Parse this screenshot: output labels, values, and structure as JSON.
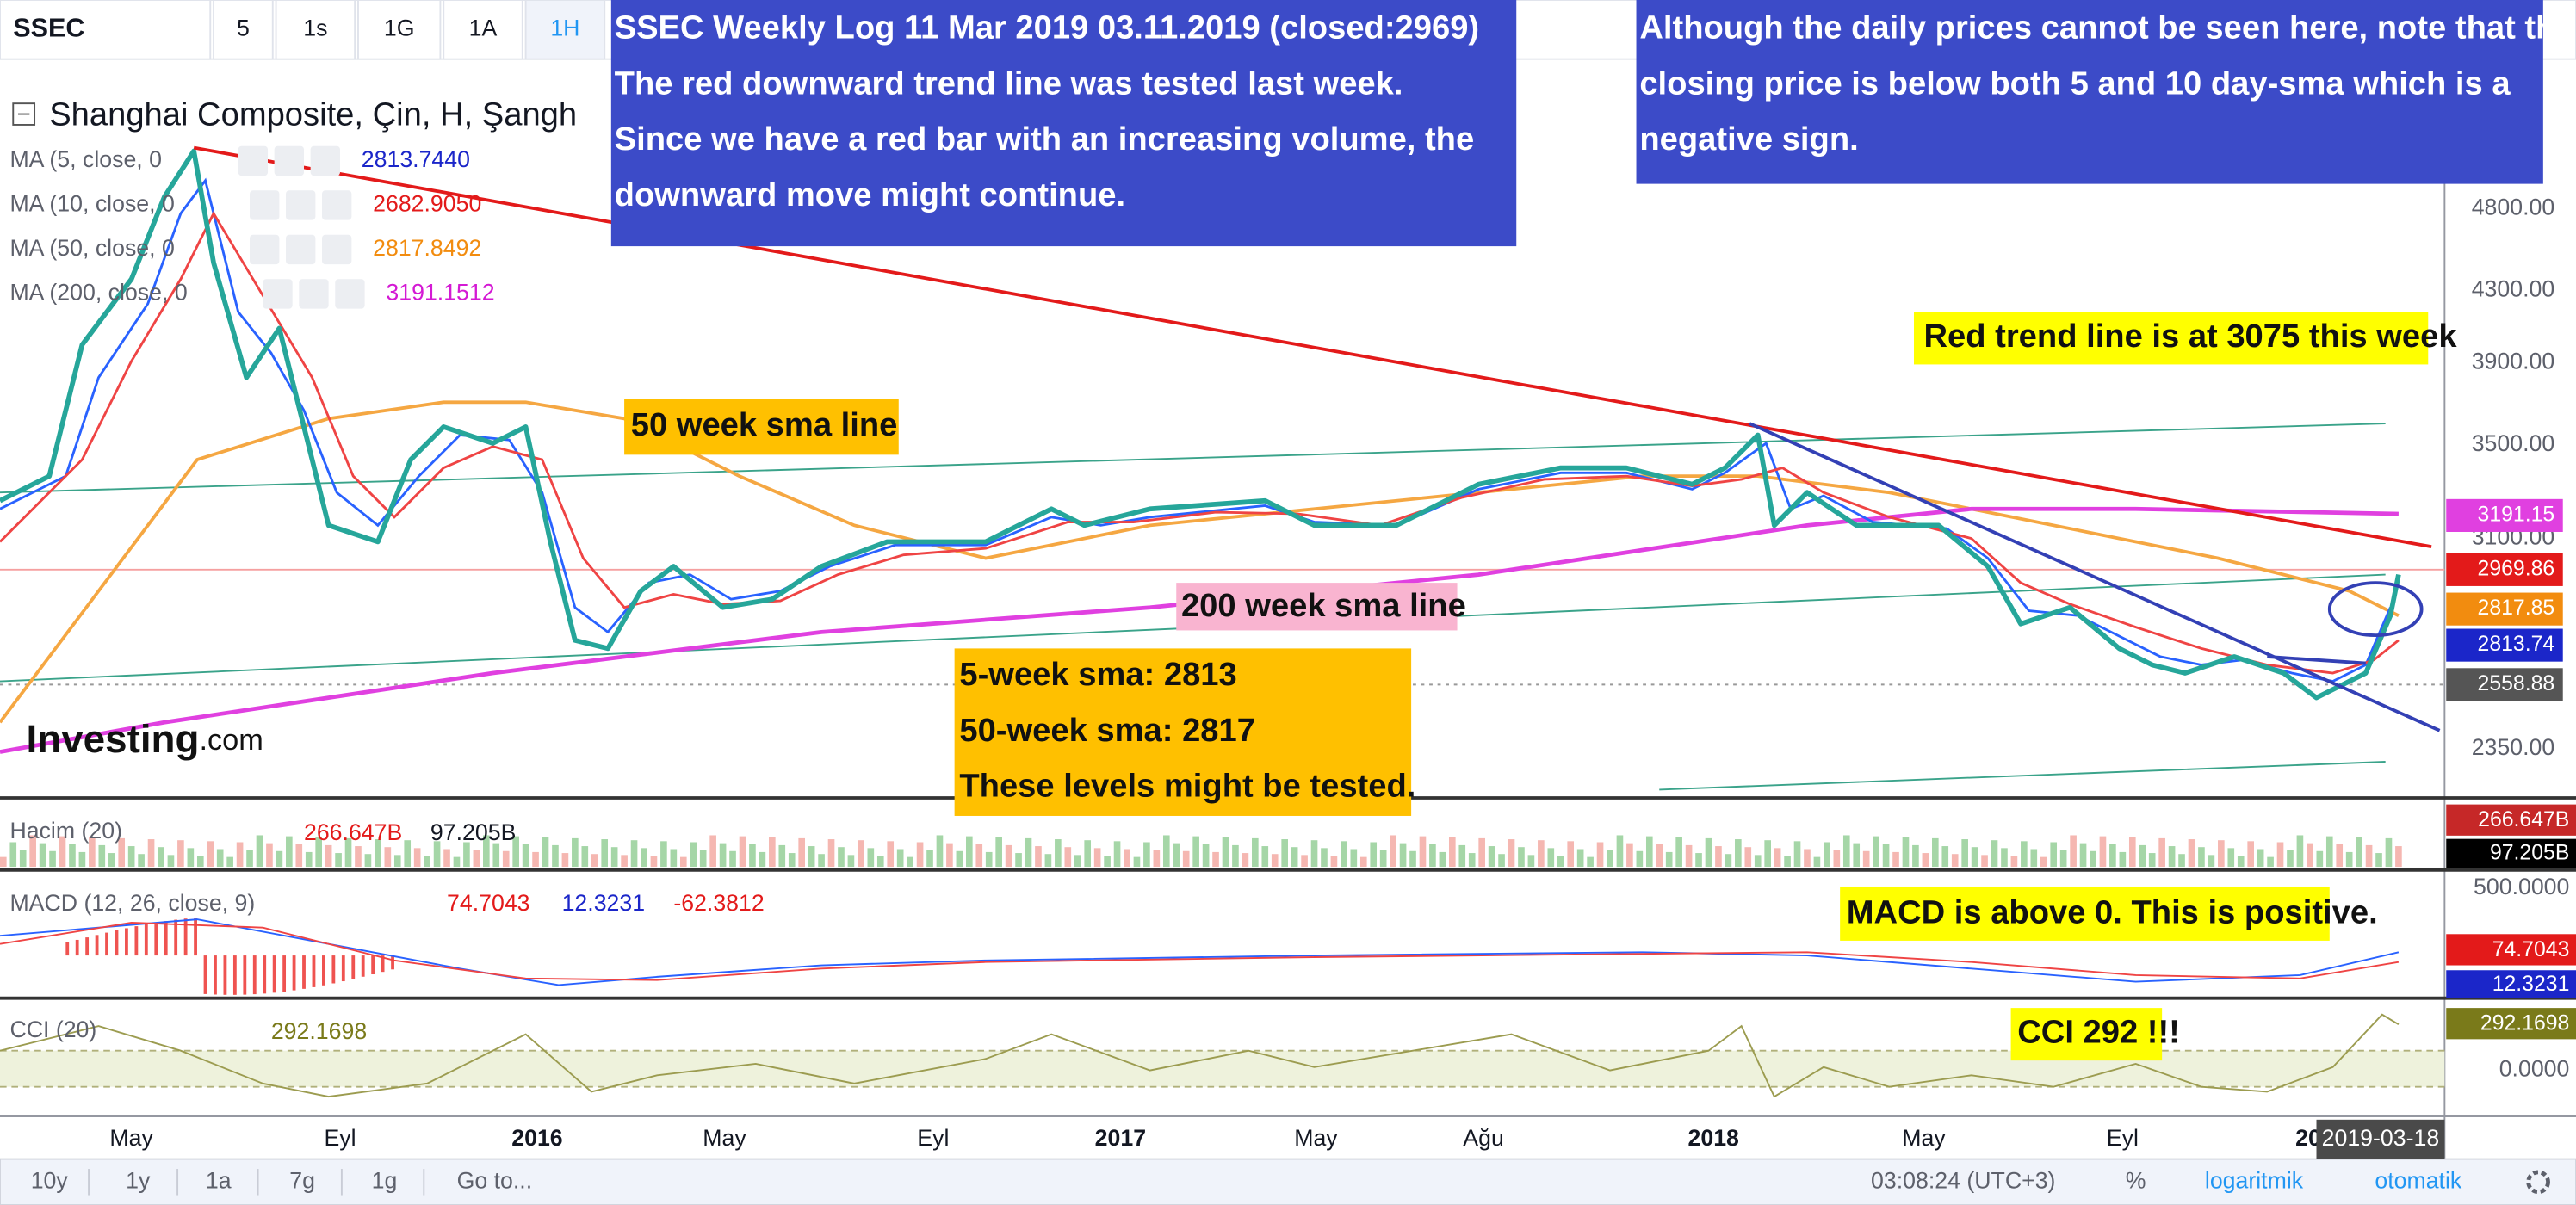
{
  "toolbar": {
    "symbol": "SSEC",
    "intervals": [
      "5",
      "1s",
      "1G",
      "1A",
      "1H"
    ]
  },
  "legend": {
    "title": "Shanghai Composite, Çin, H, Şangh",
    "indicators": [
      {
        "name": "MA (5, close, 0",
        "value": "2813.7440",
        "color": "#1b26c9"
      },
      {
        "name": "MA (10, close, 0",
        "value": "2682.9050",
        "color": "#e31a1a"
      },
      {
        "name": "MA (50, close, 0",
        "value": "2817.8492",
        "color": "#f28c0f"
      },
      {
        "name": "MA (200, close, 0",
        "value": "3191.1512",
        "color": "#d41ad4"
      }
    ]
  },
  "annotations": {
    "main": [
      "SSEC    Weekly  Log    11 Mar 2019      03.11.2019   (closed:2969)",
      "The red downward trend line was tested last week.",
      "Since we have a red bar with an increasing volume, the",
      "downward move might continue."
    ],
    "daily": [
      "Although the daily prices cannot be seen here, note that the",
      "closing price is below both 5 and 10 day-sma which is a",
      "negative sign."
    ],
    "trend": "Red trend line is at 3075 this week",
    "sma50": "50 week sma line",
    "sma200": "200 week sma line",
    "levels": [
      "5-week sma: 2813",
      "50-week sma: 2817",
      "These levels might be tested."
    ],
    "macd": "MACD is above 0. This is positive.",
    "cci": "CCI 292 !!!"
  },
  "price_axis": [
    "4800.00",
    "4300.00",
    "3900.00",
    "3500.00",
    "3100.00",
    "2350.00"
  ],
  "price_tags": [
    "3191.15",
    "2969.86",
    "2817.85",
    "2813.74",
    "2558.88"
  ],
  "watermark": {
    "brand": "Investing",
    "suffix": ".com"
  },
  "volume": {
    "label": "Hacim (20)",
    "values": [
      "266.647B",
      "97.205B"
    ],
    "tags": [
      "266.647B",
      "97.205B"
    ]
  },
  "macd": {
    "label": "MACD (12, 26, close, 9)",
    "values": [
      "74.7043",
      "12.3231",
      "-62.3812"
    ],
    "axis": "500.0000",
    "tags": [
      "74.7043",
      "12.3231"
    ]
  },
  "cci": {
    "label": "CCI (20)",
    "value": "292.1698",
    "axis": "0.0000",
    "tag": "292.1698"
  },
  "time_axis": {
    "labels": [
      "May",
      "Eyl",
      "2016",
      "May",
      "Eyl",
      "2017",
      "May",
      "Ağu",
      "2018",
      "May",
      "Eyl",
      "20"
    ],
    "current": "2019-03-18"
  },
  "bottom_bar": {
    "ranges": [
      "10y",
      "1y",
      "1a",
      "7g",
      "1g"
    ],
    "goto": "Go to...",
    "clock": "03:08:24 (UTC+3)",
    "percent": "%",
    "log": "logaritmik",
    "auto": "otomatik"
  }
}
